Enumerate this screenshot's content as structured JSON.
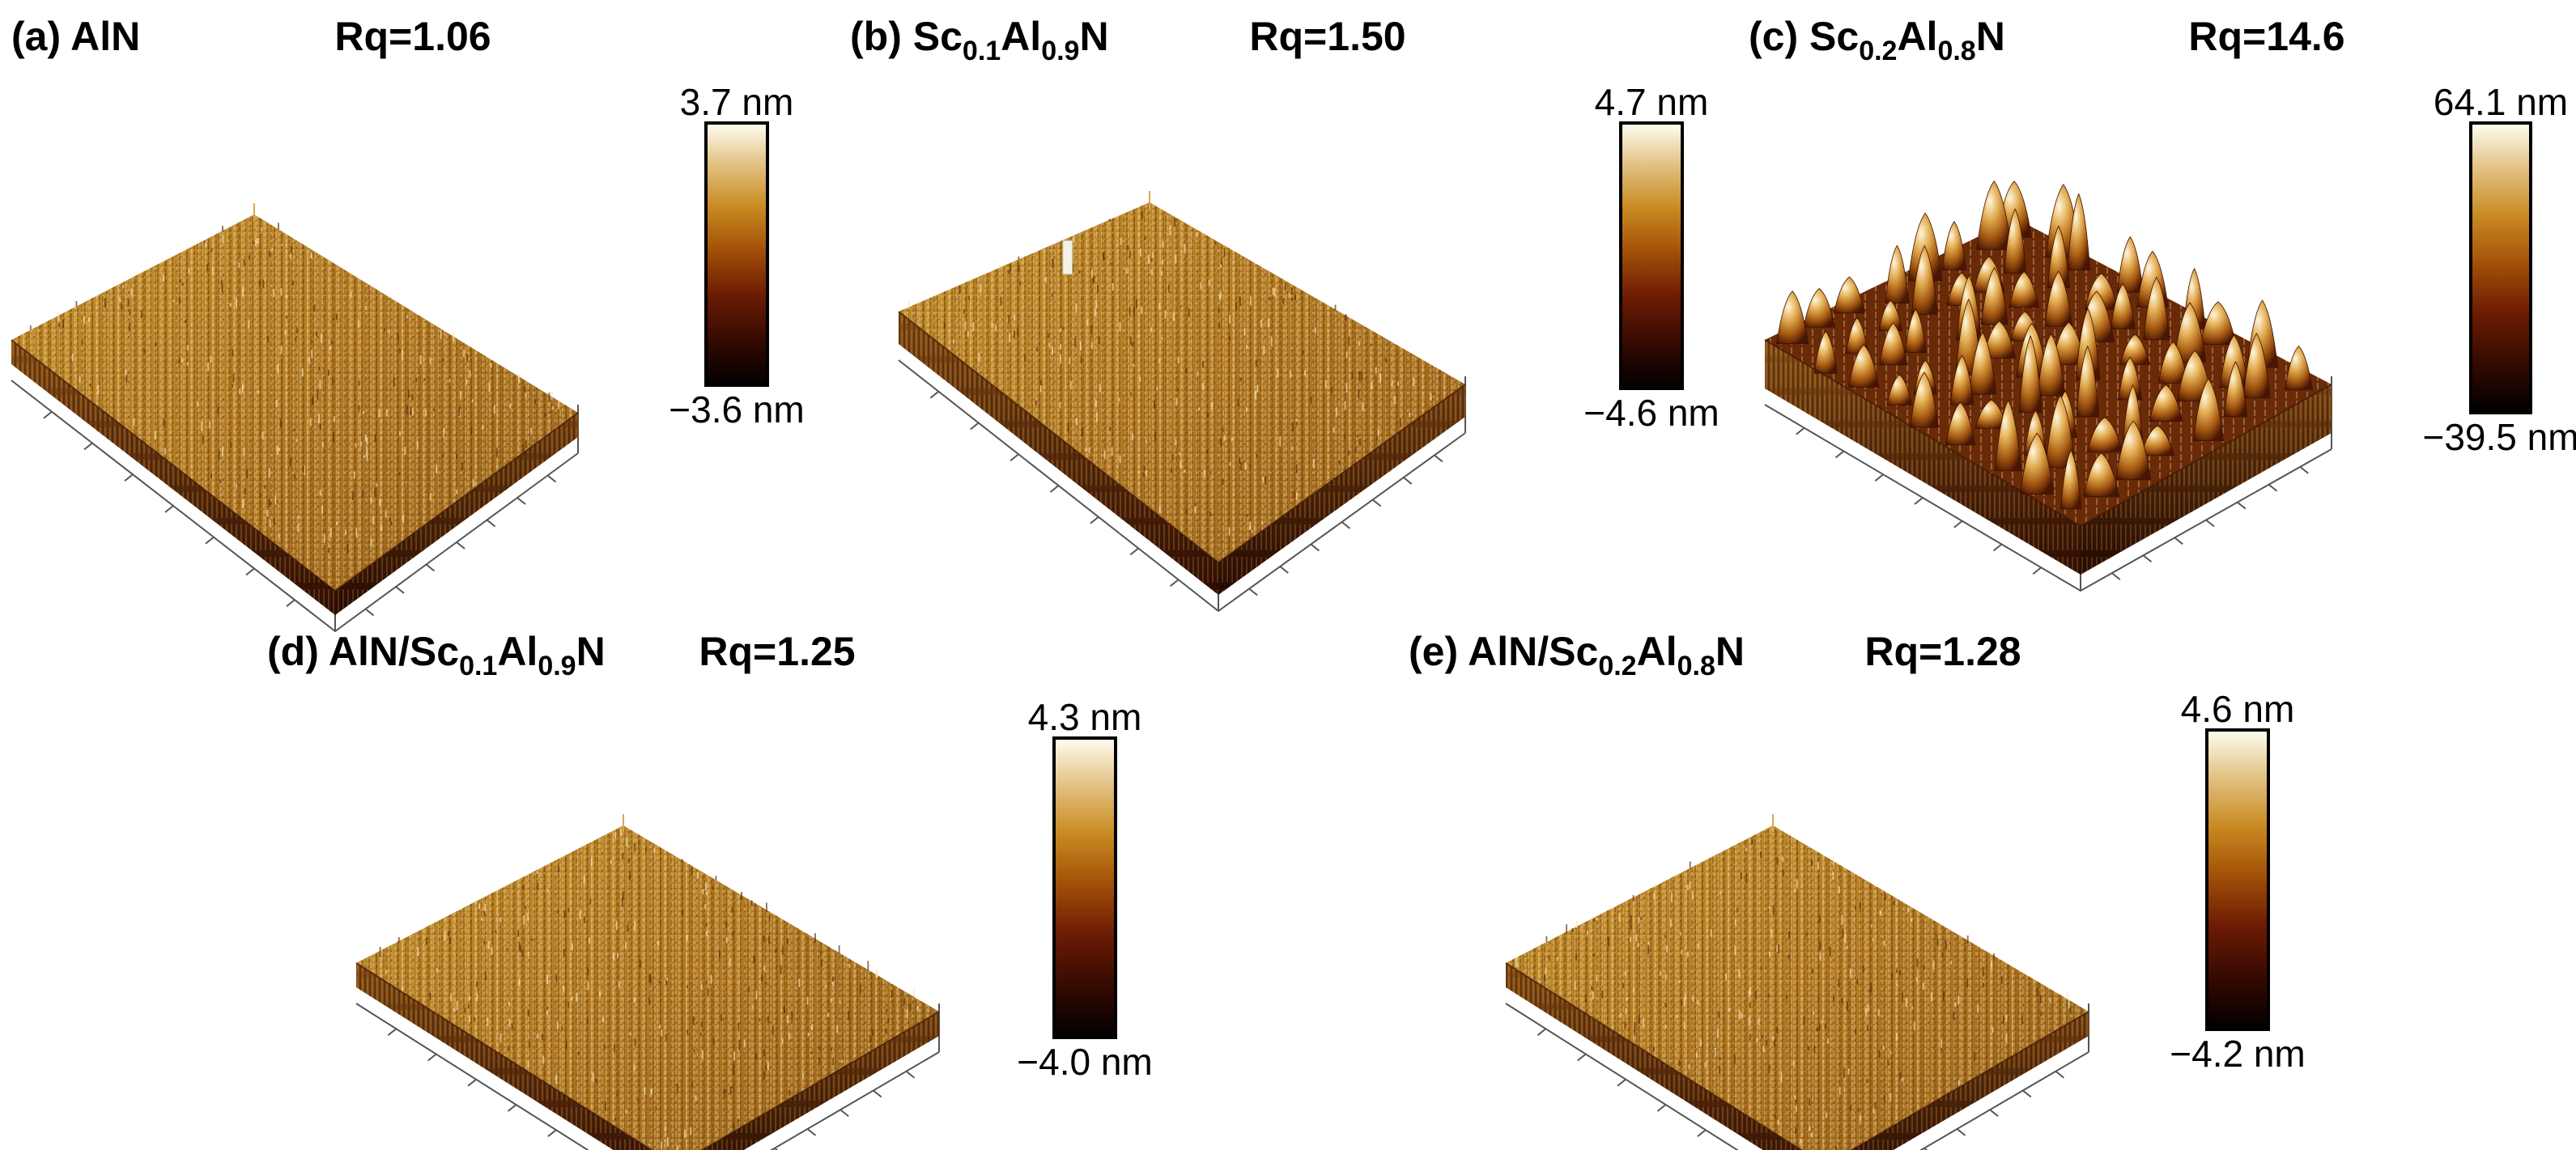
{
  "colors": {
    "colormap": [
      "#000000",
      "#2e0800",
      "#6e1c04",
      "#a45208",
      "#c98a22",
      "#e2c081",
      "#fffef2"
    ]
  },
  "panels": [
    {
      "letter": "(a)",
      "material": [
        {
          "t": "AlN"
        }
      ],
      "rq": "Rq=1.06",
      "max": "3.7 nm",
      "min": "−3.6 nm",
      "surface": "fine-grain"
    },
    {
      "letter": "(b)",
      "material": [
        {
          "t": "Sc"
        },
        {
          "t": "0.1",
          "sub": true
        },
        {
          "t": "Al"
        },
        {
          "t": "0.9",
          "sub": true
        },
        {
          "t": "N"
        }
      ],
      "rq": "Rq=1.50",
      "max": "4.7 nm",
      "min": "−4.6 nm",
      "surface": "fine-grain"
    },
    {
      "letter": "(c)",
      "material": [
        {
          "t": "Sc"
        },
        {
          "t": "0.2",
          "sub": true
        },
        {
          "t": "Al"
        },
        {
          "t": "0.8",
          "sub": true
        },
        {
          "t": "N"
        }
      ],
      "rq": "Rq=14.6",
      "max": "64.1 nm",
      "min": "−39.5 nm",
      "surface": "hillocks"
    },
    {
      "letter": "(d)",
      "material": [
        {
          "t": "AlN/Sc"
        },
        {
          "t": "0.1",
          "sub": true
        },
        {
          "t": "Al"
        },
        {
          "t": "0.9",
          "sub": true
        },
        {
          "t": "N"
        }
      ],
      "rq": "Rq=1.25",
      "max": "4.3 nm",
      "min": "−4.0 nm",
      "surface": "fine-grain"
    },
    {
      "letter": "(e)",
      "material": [
        {
          "t": "AlN/Sc"
        },
        {
          "t": "0.2",
          "sub": true
        },
        {
          "t": "Al"
        },
        {
          "t": "0.8",
          "sub": true
        },
        {
          "t": "N"
        }
      ],
      "rq": "Rq=1.28",
      "max": "4.6 nm",
      "min": "−4.2 nm",
      "surface": "fine-grain"
    }
  ]
}
